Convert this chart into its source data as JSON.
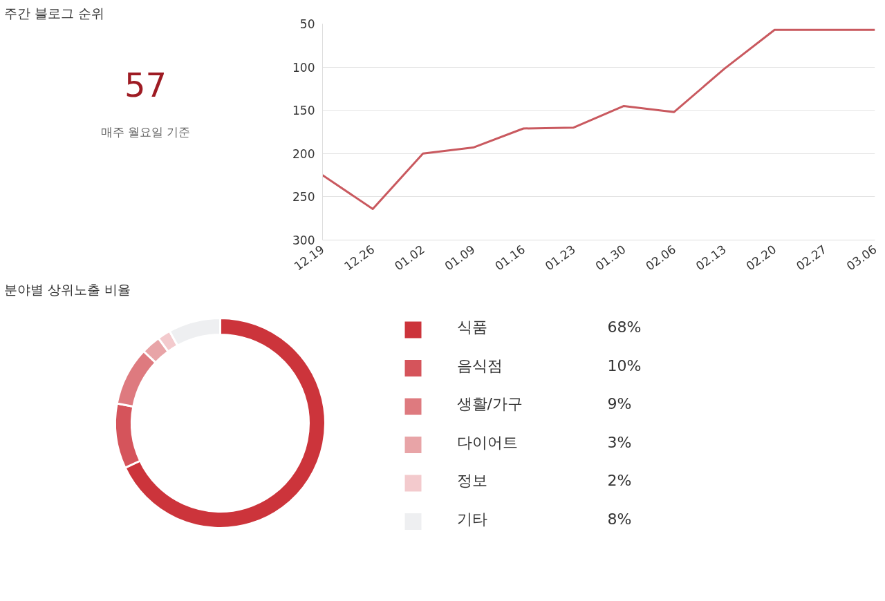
{
  "chart_data": [
    {
      "type": "other",
      "title": "주간 블로그 순위",
      "annotations": [
        "57",
        "매주 월요일 기준"
      ]
    },
    {
      "type": "line",
      "categories": [
        "12.19",
        "12.26",
        "01.02",
        "01.09",
        "01.16",
        "01.23",
        "01.30",
        "02.06",
        "02.13",
        "02.20",
        "02.27",
        "03.06"
      ],
      "series": [
        {
          "color": "#c9595f",
          "values": [
            225,
            264,
            200,
            193,
            171,
            170,
            145,
            152,
            102,
            57,
            57,
            57
          ]
        }
      ],
      "ylim": [
        300,
        50
      ],
      "yticks": [
        50,
        100,
        150,
        200,
        250,
        300
      ],
      "grid": "y",
      "marker": "none",
      "line_style": "solid",
      "legend": false
    },
    {
      "type": "donut",
      "title": "분야별 상위노출 비율",
      "categories": [
        "식품",
        "음식점",
        "생활/가구",
        "다이어트",
        "정보",
        "기타"
      ],
      "values": [
        68,
        10,
        9,
        3,
        2,
        8
      ],
      "colors": [
        "#cc343b",
        "#d5545b",
        "#de7a7f",
        "#e8a4a7",
        "#f3cacd",
        "#eeeff1"
      ],
      "value_labels": [
        "68%",
        "10%",
        "9%",
        "3%",
        "2%",
        "8%"
      ],
      "legend": "right"
    }
  ]
}
